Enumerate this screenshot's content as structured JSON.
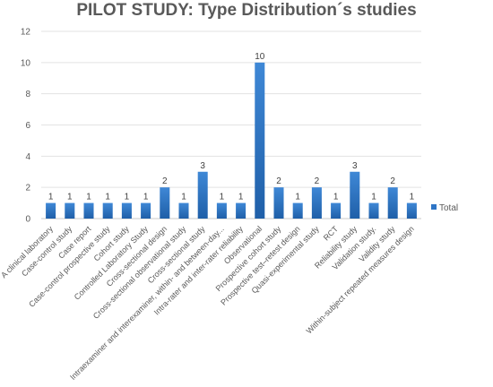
{
  "chart_data": {
    "type": "bar",
    "title": "PILOT STUDY: Type Distribution´s studies",
    "xlabel": "",
    "ylabel": "",
    "ylim": [
      0,
      12
    ],
    "yticks": [
      0,
      2,
      4,
      6,
      8,
      10,
      12
    ],
    "grid": true,
    "legend_position": "right",
    "bar_color": "#2e75c6",
    "categories": [
      "A clinical laboratory",
      "Case-control study",
      "Case report",
      "Case-control prospective study",
      "Cohort study",
      "Controlled Laboratory Study",
      "Cross-sectional design",
      "Cross-sectional observational study",
      "Cross-sectional study",
      "Intraexaminer and interexaminer, within- and between-day...",
      "Intra-rater and inter-rater reliability",
      "Observational",
      "Prospective cohort study",
      "Prospective test–retest design",
      "Quasi-experimental study",
      "RCT",
      "Reliability study",
      "Validation study.",
      "Validity study",
      "Within-subject repeated measures design"
    ],
    "series": [
      {
        "name": "Total",
        "values": [
          1,
          1,
          1,
          1,
          1,
          1,
          2,
          1,
          3,
          1,
          1,
          10,
          2,
          1,
          2,
          1,
          3,
          1,
          2,
          1
        ]
      }
    ]
  }
}
